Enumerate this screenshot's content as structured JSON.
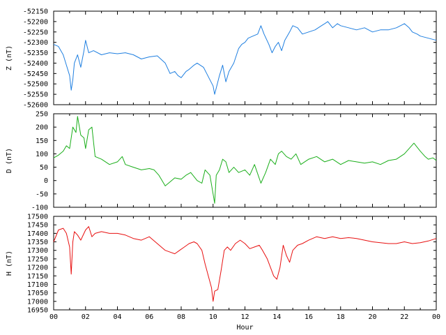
{
  "chart_data": [
    {
      "type": "line",
      "ylabel": "Z (nT)",
      "ylim": [
        -52600,
        -52150
      ],
      "yticks": [
        -52150,
        -52200,
        -52250,
        -52300,
        -52350,
        -52400,
        -52450,
        -52500,
        -52550,
        -52600
      ],
      "xlim": [
        0,
        24
      ],
      "color": "#1f7fe0",
      "series": [
        {
          "x": [
            0,
            0.3,
            0.6,
            0.8,
            1.0,
            1.1,
            1.2,
            1.3,
            1.5,
            1.7,
            1.9,
            2.0,
            2.2,
            2.5,
            3.0,
            3.5,
            4.0,
            4.5,
            5.0,
            5.5,
            6.0,
            6.5,
            7.0,
            7.3,
            7.6,
            7.8,
            8.0,
            8.3,
            8.5,
            8.8,
            9.0,
            9.2,
            9.4,
            9.6,
            9.8,
            10.0,
            10.1,
            10.2,
            10.4,
            10.6,
            10.8,
            11.0,
            11.3,
            11.6,
            11.8,
            12.0,
            12.2,
            12.5,
            12.8,
            13.0,
            13.2,
            13.5,
            13.7,
            13.9,
            14.1,
            14.3,
            14.5,
            14.8,
            15.0,
            15.3,
            15.6,
            16.0,
            16.4,
            16.8,
            17.0,
            17.2,
            17.5,
            17.8,
            18.0,
            18.5,
            19.0,
            19.5,
            20.0,
            20.5,
            21.0,
            21.5,
            22.0,
            22.3,
            22.5,
            22.8,
            23.0,
            23.5,
            24.0
          ],
          "y": [
            -52310,
            -52320,
            -52360,
            -52410,
            -52460,
            -52530,
            -52480,
            -52400,
            -52360,
            -52420,
            -52340,
            -52290,
            -52350,
            -52340,
            -52360,
            -52350,
            -52355,
            -52350,
            -52360,
            -52380,
            -52370,
            -52365,
            -52400,
            -52450,
            -52440,
            -52460,
            -52470,
            -52440,
            -52430,
            -52410,
            -52400,
            -52410,
            -52420,
            -52450,
            -52480,
            -52510,
            -52550,
            -52520,
            -52460,
            -52410,
            -52490,
            -52440,
            -52400,
            -52330,
            -52310,
            -52300,
            -52280,
            -52270,
            -52260,
            -52220,
            -52260,
            -52310,
            -52350,
            -52320,
            -52300,
            -52340,
            -52290,
            -52250,
            -52220,
            -52230,
            -52260,
            -52250,
            -52240,
            -52220,
            -52210,
            -52200,
            -52230,
            -52210,
            -52220,
            -52230,
            -52240,
            -52230,
            -52250,
            -52240,
            -52240,
            -52230,
            -52210,
            -52230,
            -52250,
            -52260,
            -52270,
            -52280,
            -52290
          ]
        }
      ]
    },
    {
      "type": "line",
      "ylabel": "D (nT)",
      "ylim": [
        -100,
        250
      ],
      "yticks": [
        250,
        200,
        150,
        100,
        50,
        0,
        -50,
        -100
      ],
      "xlim": [
        0,
        24
      ],
      "color": "#1aae1a",
      "series": [
        {
          "x": [
            0,
            0.3,
            0.6,
            0.8,
            1.0,
            1.2,
            1.4,
            1.5,
            1.7,
            1.9,
            2.0,
            2.2,
            2.4,
            2.6,
            3.0,
            3.5,
            4.0,
            4.3,
            4.5,
            5.0,
            5.5,
            6.0,
            6.3,
            6.6,
            6.9,
            7.0,
            7.3,
            7.6,
            8.0,
            8.3,
            8.6,
            9.0,
            9.3,
            9.5,
            9.8,
            10.0,
            10.1,
            10.2,
            10.4,
            10.6,
            10.8,
            11.0,
            11.3,
            11.6,
            12.0,
            12.3,
            12.6,
            13.0,
            13.3,
            13.6,
            13.9,
            14.1,
            14.3,
            14.6,
            14.9,
            15.2,
            15.5,
            16.0,
            16.5,
            17.0,
            17.5,
            18.0,
            18.5,
            19.0,
            19.5,
            20.0,
            20.5,
            21.0,
            21.5,
            22.0,
            22.3,
            22.6,
            22.8,
            23.0,
            23.3,
            23.5,
            23.8,
            24.0
          ],
          "y": [
            85,
            95,
            110,
            130,
            120,
            200,
            180,
            240,
            170,
            160,
            120,
            190,
            200,
            90,
            80,
            60,
            70,
            90,
            60,
            50,
            40,
            45,
            40,
            20,
            -10,
            -20,
            -5,
            10,
            5,
            20,
            30,
            0,
            -10,
            40,
            20,
            -50,
            -85,
            20,
            40,
            80,
            70,
            30,
            50,
            30,
            40,
            20,
            60,
            -10,
            30,
            80,
            60,
            100,
            110,
            90,
            80,
            100,
            60,
            80,
            90,
            70,
            80,
            60,
            75,
            70,
            65,
            70,
            60,
            75,
            80,
            100,
            120,
            140,
            125,
            110,
            90,
            80,
            85,
            75
          ]
        }
      ]
    },
    {
      "type": "line",
      "ylabel": "H (nT)",
      "ylim": [
        16950,
        17500
      ],
      "yticks": [
        17500,
        17450,
        17400,
        17350,
        17300,
        17250,
        17200,
        17150,
        17100,
        17050,
        17000,
        16950
      ],
      "xlim": [
        0,
        24
      ],
      "xticks": [
        "00",
        "02",
        "04",
        "06",
        "08",
        "10",
        "12",
        "14",
        "16",
        "18",
        "20",
        "22",
        "00"
      ],
      "xlabel": "Hour",
      "color": "#e81010",
      "series": [
        {
          "x": [
            0,
            0.3,
            0.6,
            0.8,
            1.0,
            1.1,
            1.2,
            1.3,
            1.5,
            1.7,
            2.0,
            2.2,
            2.4,
            2.6,
            3.0,
            3.5,
            4.0,
            4.5,
            5.0,
            5.5,
            6.0,
            6.5,
            7.0,
            7.3,
            7.6,
            7.9,
            8.2,
            8.5,
            8.8,
            9.0,
            9.3,
            9.5,
            9.7,
            9.9,
            10.0,
            10.1,
            10.3,
            10.5,
            10.7,
            10.9,
            11.1,
            11.4,
            11.7,
            12.0,
            12.3,
            12.6,
            12.9,
            13.1,
            13.4,
            13.6,
            13.8,
            14.0,
            14.2,
            14.4,
            14.6,
            14.8,
            15.0,
            15.3,
            15.6,
            16.0,
            16.5,
            17.0,
            17.5,
            18.0,
            18.5,
            19.0,
            19.5,
            20.0,
            20.5,
            21.0,
            21.5,
            22.0,
            22.5,
            23.0,
            23.5,
            24.0
          ],
          "y": [
            17350,
            17420,
            17430,
            17400,
            17320,
            17160,
            17350,
            17410,
            17390,
            17360,
            17420,
            17440,
            17380,
            17400,
            17410,
            17400,
            17400,
            17390,
            17370,
            17360,
            17380,
            17340,
            17300,
            17290,
            17280,
            17300,
            17320,
            17340,
            17350,
            17340,
            17300,
            17220,
            17150,
            17080,
            17000,
            17060,
            17070,
            17180,
            17300,
            17320,
            17300,
            17340,
            17360,
            17340,
            17310,
            17320,
            17330,
            17300,
            17250,
            17200,
            17150,
            17130,
            17200,
            17330,
            17270,
            17230,
            17300,
            17330,
            17340,
            17360,
            17380,
            17370,
            17380,
            17370,
            17375,
            17370,
            17360,
            17350,
            17345,
            17340,
            17340,
            17350,
            17340,
            17345,
            17355,
            17370
          ]
        }
      ]
    }
  ]
}
